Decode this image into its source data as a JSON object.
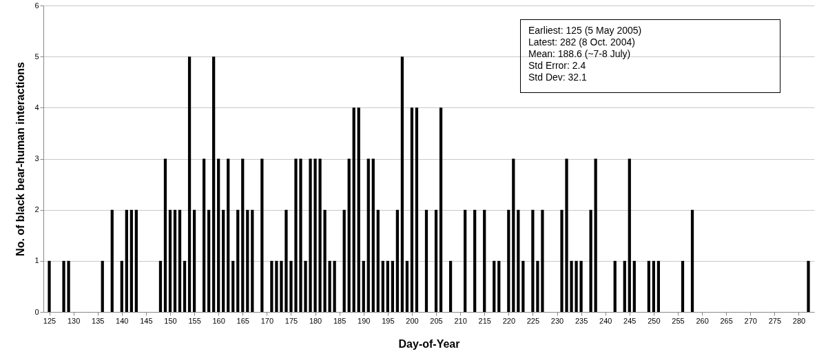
{
  "chart_data": {
    "type": "bar",
    "xlabel": "Day-of-Year",
    "ylabel": "No. of black bear-human interactions",
    "x": [
      125,
      128,
      129,
      136,
      138,
      140,
      141,
      142,
      143,
      148,
      149,
      150,
      151,
      152,
      153,
      154,
      155,
      157,
      158,
      159,
      160,
      161,
      162,
      163,
      164,
      165,
      166,
      167,
      169,
      171,
      172,
      173,
      174,
      175,
      176,
      177,
      178,
      179,
      180,
      181,
      182,
      183,
      184,
      186,
      187,
      188,
      189,
      190,
      191,
      192,
      193,
      194,
      195,
      196,
      197,
      198,
      199,
      200,
      201,
      203,
      205,
      206,
      208,
      211,
      213,
      215,
      217,
      218,
      220,
      221,
      222,
      223,
      225,
      226,
      227,
      231,
      232,
      233,
      234,
      235,
      237,
      238,
      242,
      244,
      245,
      246,
      249,
      250,
      251,
      256,
      258,
      282
    ],
    "values": [
      1,
      1,
      1,
      1,
      2,
      1,
      2,
      2,
      2,
      1,
      3,
      2,
      2,
      2,
      1,
      5,
      2,
      3,
      2,
      5,
      3,
      2,
      3,
      1,
      2,
      3,
      2,
      2,
      3,
      1,
      1,
      1,
      2,
      1,
      3,
      3,
      1,
      3,
      3,
      3,
      2,
      1,
      1,
      2,
      3,
      4,
      4,
      1,
      3,
      3,
      2,
      1,
      1,
      1,
      2,
      5,
      1,
      4,
      4,
      2,
      2,
      4,
      1,
      2,
      2,
      2,
      1,
      1,
      2,
      3,
      2,
      1,
      2,
      1,
      2,
      2,
      3,
      1,
      1,
      1,
      2,
      3,
      1,
      1,
      3,
      1,
      1,
      1,
      1,
      1,
      2,
      1
    ],
    "color": "#000000",
    "xlim": [
      124.5,
      282.5
    ],
    "xticks": [
      125,
      130,
      135,
      140,
      145,
      150,
      155,
      160,
      165,
      170,
      175,
      180,
      185,
      190,
      195,
      200,
      205,
      210,
      215,
      220,
      225,
      230,
      235,
      240,
      245,
      250,
      255,
      260,
      265,
      270,
      275,
      280
    ],
    "ylim": [
      0,
      6
    ],
    "yticks": [
      0,
      1,
      2,
      3,
      4,
      5,
      6
    ],
    "grid": "y",
    "annotations": [
      "Earliest: 125 (5 May 2005)",
      "Latest: 282 (8 Oct. 2004)",
      "Mean: 188.6 (~7-8 July)",
      "Std Error: 2.4",
      "Std Dev: 32.1"
    ]
  }
}
